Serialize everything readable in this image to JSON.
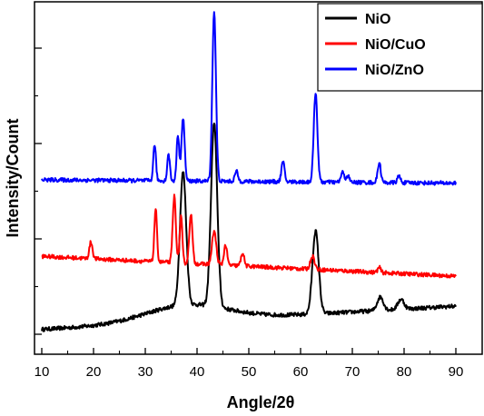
{
  "chart_data": {
    "type": "line",
    "xlabel": "Angle/2θ",
    "ylabel": "Intensity/Count",
    "xlim": [
      10,
      90
    ],
    "x_ticks": [
      10,
      20,
      30,
      40,
      50,
      60,
      70,
      80,
      90
    ],
    "y_ticks_labeled": false,
    "grid": false,
    "legend_position": "top-right",
    "series": [
      {
        "name": "NiO",
        "color": "#000000",
        "baseline": [
          0.02,
          0.09
        ],
        "peaks": [
          [
            37.3,
            0.4,
            0.6
          ],
          [
            43.3,
            0.55,
            0.6
          ],
          [
            62.9,
            0.25,
            0.6
          ],
          [
            75.4,
            0.04,
            0.6
          ],
          [
            79.4,
            0.03,
            0.6
          ]
        ]
      },
      {
        "name": "NiO/CuO",
        "color": "#ff0000",
        "baseline": [
          0.24,
          0.18
        ],
        "peaks": [
          [
            19.5,
            0.05,
            0.3
          ],
          [
            32.0,
            0.16,
            0.25
          ],
          [
            35.6,
            0.2,
            0.3
          ],
          [
            36.9,
            0.14,
            0.25
          ],
          [
            38.8,
            0.15,
            0.3
          ],
          [
            43.3,
            0.1,
            0.4
          ],
          [
            45.5,
            0.06,
            0.3
          ],
          [
            48.8,
            0.04,
            0.3
          ],
          [
            62.3,
            0.04,
            0.4
          ],
          [
            75.2,
            0.015,
            0.3
          ]
        ]
      },
      {
        "name": "NiO/ZnO",
        "color": "#0000ff",
        "baseline": [
          0.47,
          0.46
        ],
        "peaks": [
          [
            31.8,
            0.11,
            0.25
          ],
          [
            34.5,
            0.08,
            0.25
          ],
          [
            36.3,
            0.14,
            0.25
          ],
          [
            37.3,
            0.19,
            0.3
          ],
          [
            43.3,
            0.51,
            0.35
          ],
          [
            47.6,
            0.03,
            0.3
          ],
          [
            56.6,
            0.06,
            0.3
          ],
          [
            62.9,
            0.27,
            0.35
          ],
          [
            68.1,
            0.03,
            0.3
          ],
          [
            69.1,
            0.02,
            0.3
          ],
          [
            75.2,
            0.06,
            0.3
          ],
          [
            79.0,
            0.02,
            0.3
          ]
        ]
      }
    ]
  }
}
